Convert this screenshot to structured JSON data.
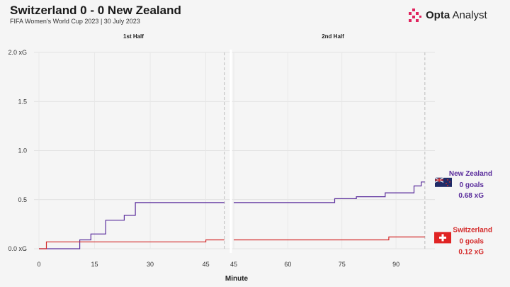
{
  "header": {
    "title": "Switzerland 0 - 0 New Zealand",
    "subtitle": "FIFA Women's World Cup 2023 | 30 July 2023",
    "brand_bold": "Opta",
    "brand_rest": " Analyst",
    "brand_logo": "opta-pixel-logo-icon",
    "brand_color": "#e0245e"
  },
  "chart_data": {
    "type": "line",
    "line_style": "step",
    "panels": [
      {
        "label": "1st Half",
        "x_ticks": [
          0,
          15,
          30,
          45
        ],
        "xlim": [
          0,
          51
        ],
        "period_end": 50
      },
      {
        "label": "2nd Half",
        "x_ticks": [
          45,
          60,
          75,
          90
        ],
        "xlim": [
          45,
          100
        ],
        "period_end": 98
      }
    ],
    "xlabel": "Minute",
    "ylim": [
      0,
      2.0
    ],
    "y_ticks": [
      {
        "value": 0.0,
        "label": "0.0 xG"
      },
      {
        "value": 0.5,
        "label": "0.5"
      },
      {
        "value": 1.0,
        "label": "1.0"
      },
      {
        "value": 1.5,
        "label": "1.5"
      },
      {
        "value": 2.0,
        "label": "2.0 xG"
      }
    ],
    "grid": true,
    "series": [
      {
        "name": "New Zealand",
        "color": "#5a2d9c",
        "flag_icon": "new-zealand-flag-icon",
        "goals_label": "0 goals",
        "xg_label": "0.68 xG",
        "first_half": [
          [
            0,
            0.0
          ],
          [
            11,
            0.0
          ],
          [
            11,
            0.09
          ],
          [
            14,
            0.09
          ],
          [
            14,
            0.15
          ],
          [
            18,
            0.15
          ],
          [
            18,
            0.29
          ],
          [
            23,
            0.29
          ],
          [
            23,
            0.34
          ],
          [
            26,
            0.34
          ],
          [
            26,
            0.47
          ],
          [
            50,
            0.47
          ]
        ],
        "second_half": [
          [
            45,
            0.47
          ],
          [
            73,
            0.47
          ],
          [
            73,
            0.51
          ],
          [
            79,
            0.51
          ],
          [
            79,
            0.53
          ],
          [
            87,
            0.53
          ],
          [
            87,
            0.57
          ],
          [
            95,
            0.57
          ],
          [
            95,
            0.64
          ],
          [
            97,
            0.64
          ],
          [
            97,
            0.68
          ],
          [
            98,
            0.68
          ]
        ]
      },
      {
        "name": "Switzerland",
        "color": "#d42a2a",
        "flag_icon": "switzerland-flag-icon",
        "goals_label": "0 goals",
        "xg_label": "0.12 xG",
        "first_half": [
          [
            0,
            0.0
          ],
          [
            2,
            0.0
          ],
          [
            2,
            0.07
          ],
          [
            45,
            0.07
          ],
          [
            45,
            0.09
          ],
          [
            50,
            0.09
          ]
        ],
        "second_half": [
          [
            45,
            0.09
          ],
          [
            88,
            0.09
          ],
          [
            88,
            0.12
          ],
          [
            98,
            0.12
          ]
        ]
      }
    ]
  }
}
